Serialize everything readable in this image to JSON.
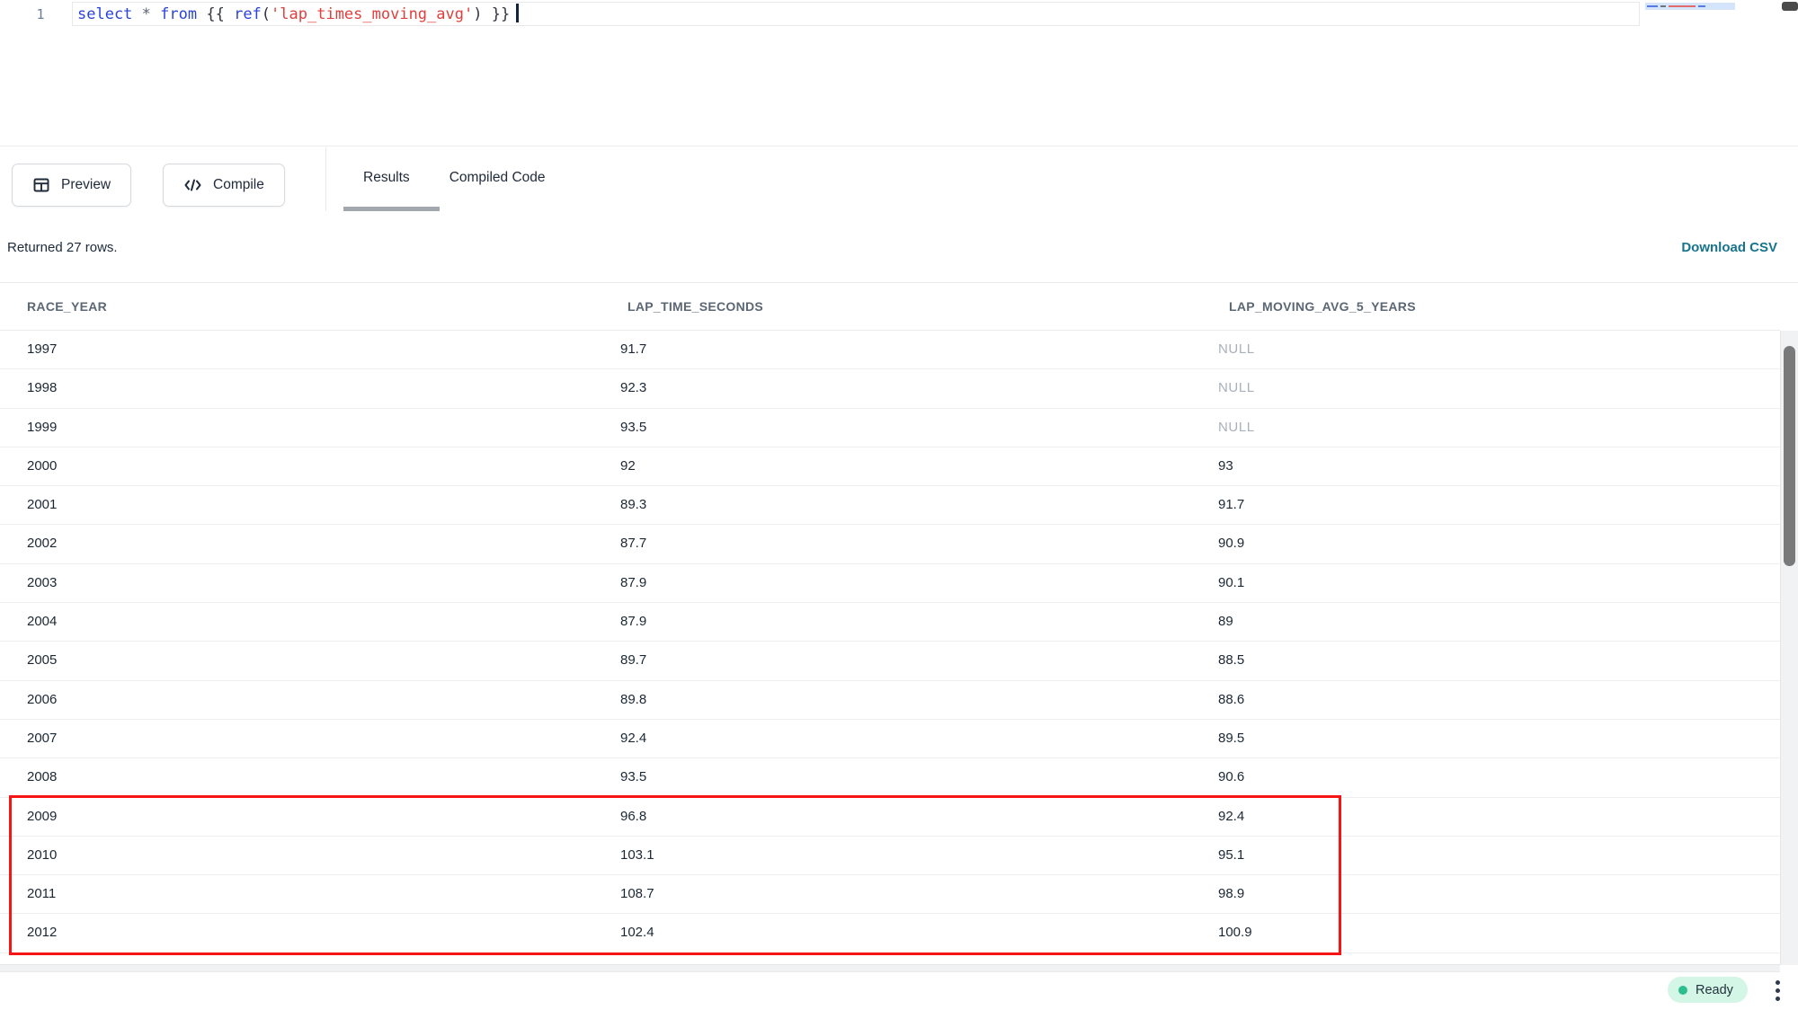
{
  "editor": {
    "line_number": "1",
    "tokens": [
      {
        "t": "select",
        "c": "kw"
      },
      {
        "t": " ",
        "c": "pl"
      },
      {
        "t": "*",
        "c": "op"
      },
      {
        "t": " ",
        "c": "pl"
      },
      {
        "t": "from",
        "c": "kw"
      },
      {
        "t": " {{ ",
        "c": "pl"
      },
      {
        "t": "ref",
        "c": "kw"
      },
      {
        "t": "(",
        "c": "pl"
      },
      {
        "t": "'lap_times_moving_avg'",
        "c": "str"
      },
      {
        "t": ")",
        "c": "pl"
      },
      {
        "t": " }}",
        "c": "pl"
      }
    ]
  },
  "toolbar": {
    "preview_label": "Preview",
    "compile_label": "Compile",
    "tabs": {
      "results_label": "Results",
      "compiled_code_label": "Compiled Code",
      "active_tab": "Results"
    }
  },
  "results": {
    "summary": "Returned 27 rows.",
    "download_csv_label": "Download CSV",
    "columns": [
      "RACE_YEAR",
      "LAP_TIME_SECONDS",
      "LAP_MOVING_AVG_5_YEARS"
    ],
    "rows": [
      {
        "year": "1997",
        "lap": "91.7",
        "avg": "NULL",
        "highlighted": false
      },
      {
        "year": "1998",
        "lap": "92.3",
        "avg": "NULL",
        "highlighted": false
      },
      {
        "year": "1999",
        "lap": "93.5",
        "avg": "NULL",
        "highlighted": false
      },
      {
        "year": "2000",
        "lap": "92",
        "avg": "93",
        "highlighted": false
      },
      {
        "year": "2001",
        "lap": "89.3",
        "avg": "91.7",
        "highlighted": false
      },
      {
        "year": "2002",
        "lap": "87.7",
        "avg": "90.9",
        "highlighted": false
      },
      {
        "year": "2003",
        "lap": "87.9",
        "avg": "90.1",
        "highlighted": false
      },
      {
        "year": "2004",
        "lap": "87.9",
        "avg": "89",
        "highlighted": false
      },
      {
        "year": "2005",
        "lap": "89.7",
        "avg": "88.5",
        "highlighted": false
      },
      {
        "year": "2006",
        "lap": "89.8",
        "avg": "88.6",
        "highlighted": false
      },
      {
        "year": "2007",
        "lap": "92.4",
        "avg": "89.5",
        "highlighted": false
      },
      {
        "year": "2008",
        "lap": "93.5",
        "avg": "90.6",
        "highlighted": false
      },
      {
        "year": "2009",
        "lap": "96.8",
        "avg": "92.4",
        "highlighted": true
      },
      {
        "year": "2010",
        "lap": "103.1",
        "avg": "95.1",
        "highlighted": true
      },
      {
        "year": "2011",
        "lap": "108.7",
        "avg": "98.9",
        "highlighted": true
      },
      {
        "year": "2012",
        "lap": "102.4",
        "avg": "100.9",
        "highlighted": true
      }
    ]
  },
  "status_bar": {
    "ready_label": "Ready"
  },
  "colors": {
    "accent_teal": "#17748c",
    "highlight_red": "#f71414",
    "ready_green": "#2ebd8e",
    "ready_bg": "#d4f6e6",
    "keyword_blue": "#2b44d8",
    "string_red": "#e0403d"
  }
}
